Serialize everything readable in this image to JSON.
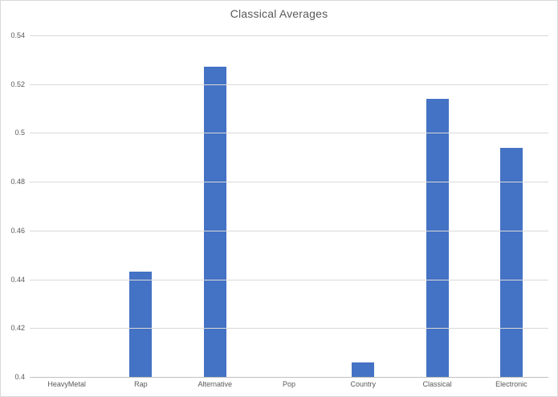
{
  "title": "Classical Averages",
  "chart_data": {
    "type": "bar",
    "title": "Classical Averages",
    "categories": [
      "HeavyMetal",
      "Rap",
      "Alternative",
      "Pop",
      "Country",
      "Classical",
      "Electronic"
    ],
    "values": [
      null,
      0.443,
      0.527,
      null,
      0.406,
      0.514,
      0.494
    ],
    "xlabel": "",
    "ylabel": "",
    "ylim": [
      0.4,
      0.54
    ],
    "ytick_labels": [
      "0.54",
      "0.52",
      "0.5",
      "0.48",
      "0.46",
      "0.44",
      "0.42",
      "0.4"
    ],
    "grid": true,
    "legend": false
  },
  "colors": {
    "bar": "#4472C4",
    "gridline": "#D9D9D9",
    "axis_line": "#BFBFBF",
    "text": "#595959",
    "border": "#D9D9D9",
    "background": "#FFFFFF"
  }
}
